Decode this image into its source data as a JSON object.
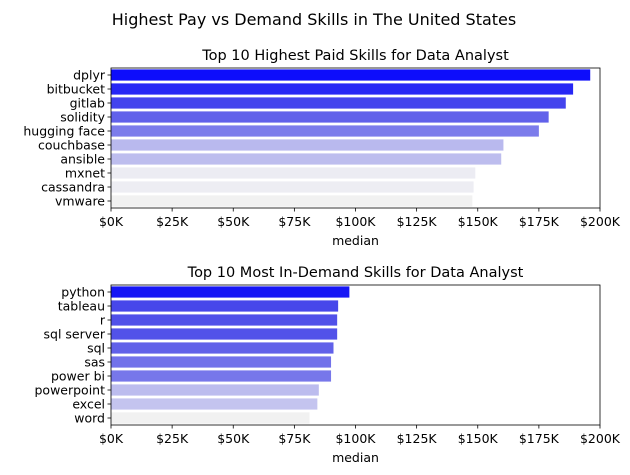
{
  "figure": {
    "suptitle": "Highest Pay vs Demand Skills in The United States"
  },
  "chart_data": [
    {
      "type": "bar",
      "orientation": "horizontal",
      "title": "Top 10 Highest Paid Skills for Data Analyst",
      "xlabel": "median",
      "ylabel": "",
      "xlim": [
        0,
        200000
      ],
      "xticks": [
        0,
        25000,
        50000,
        75000,
        100000,
        125000,
        150000,
        175000,
        200000
      ],
      "xtick_labels": [
        "$0K",
        "$25K",
        "$50K",
        "$75K",
        "$100K",
        "$125K",
        "$150K",
        "$175K",
        "$200K"
      ],
      "categories": [
        "dplyr",
        "bitbucket",
        "gitlab",
        "solidity",
        "hugging face",
        "couchbase",
        "ansible",
        "mxnet",
        "cassandra",
        "vmware"
      ],
      "values": [
        196000,
        189000,
        186000,
        179000,
        175000,
        160500,
        159600,
        149000,
        148300,
        147800
      ],
      "colors": [
        "#0d0dfb",
        "#2727f5",
        "#4444ed",
        "#6161ea",
        "#7c7ceb",
        "#b9b9ee",
        "#bdbdee",
        "#ececf3",
        "#ededf3",
        "#f1f1f1"
      ],
      "grid": false,
      "legend": "none"
    },
    {
      "type": "bar",
      "orientation": "horizontal",
      "title": "Top 10 Most In-Demand Skills for Data Analyst",
      "xlabel": "median",
      "ylabel": "",
      "xlim": [
        0,
        200000
      ],
      "xticks": [
        0,
        25000,
        50000,
        75000,
        100000,
        125000,
        150000,
        175000,
        200000
      ],
      "xtick_labels": [
        "$0K",
        "$25K",
        "$50K",
        "$75K",
        "$100K",
        "$125K",
        "$150K",
        "$175K",
        "$200K"
      ],
      "categories": [
        "python",
        "tableau",
        "r",
        "sql server",
        "sql",
        "sas",
        "power bi",
        "powerpoint",
        "excel",
        "word"
      ],
      "values": [
        97500,
        92900,
        92500,
        92500,
        91000,
        90000,
        90000,
        85000,
        84400,
        81200
      ],
      "colors": [
        "#1616f5",
        "#4747ea",
        "#5050e9",
        "#5252e9",
        "#6161e9",
        "#7272ea",
        "#7777ea",
        "#bcbcee",
        "#c4c4ef",
        "#f1f1f1"
      ],
      "grid": false,
      "legend": "none"
    }
  ]
}
